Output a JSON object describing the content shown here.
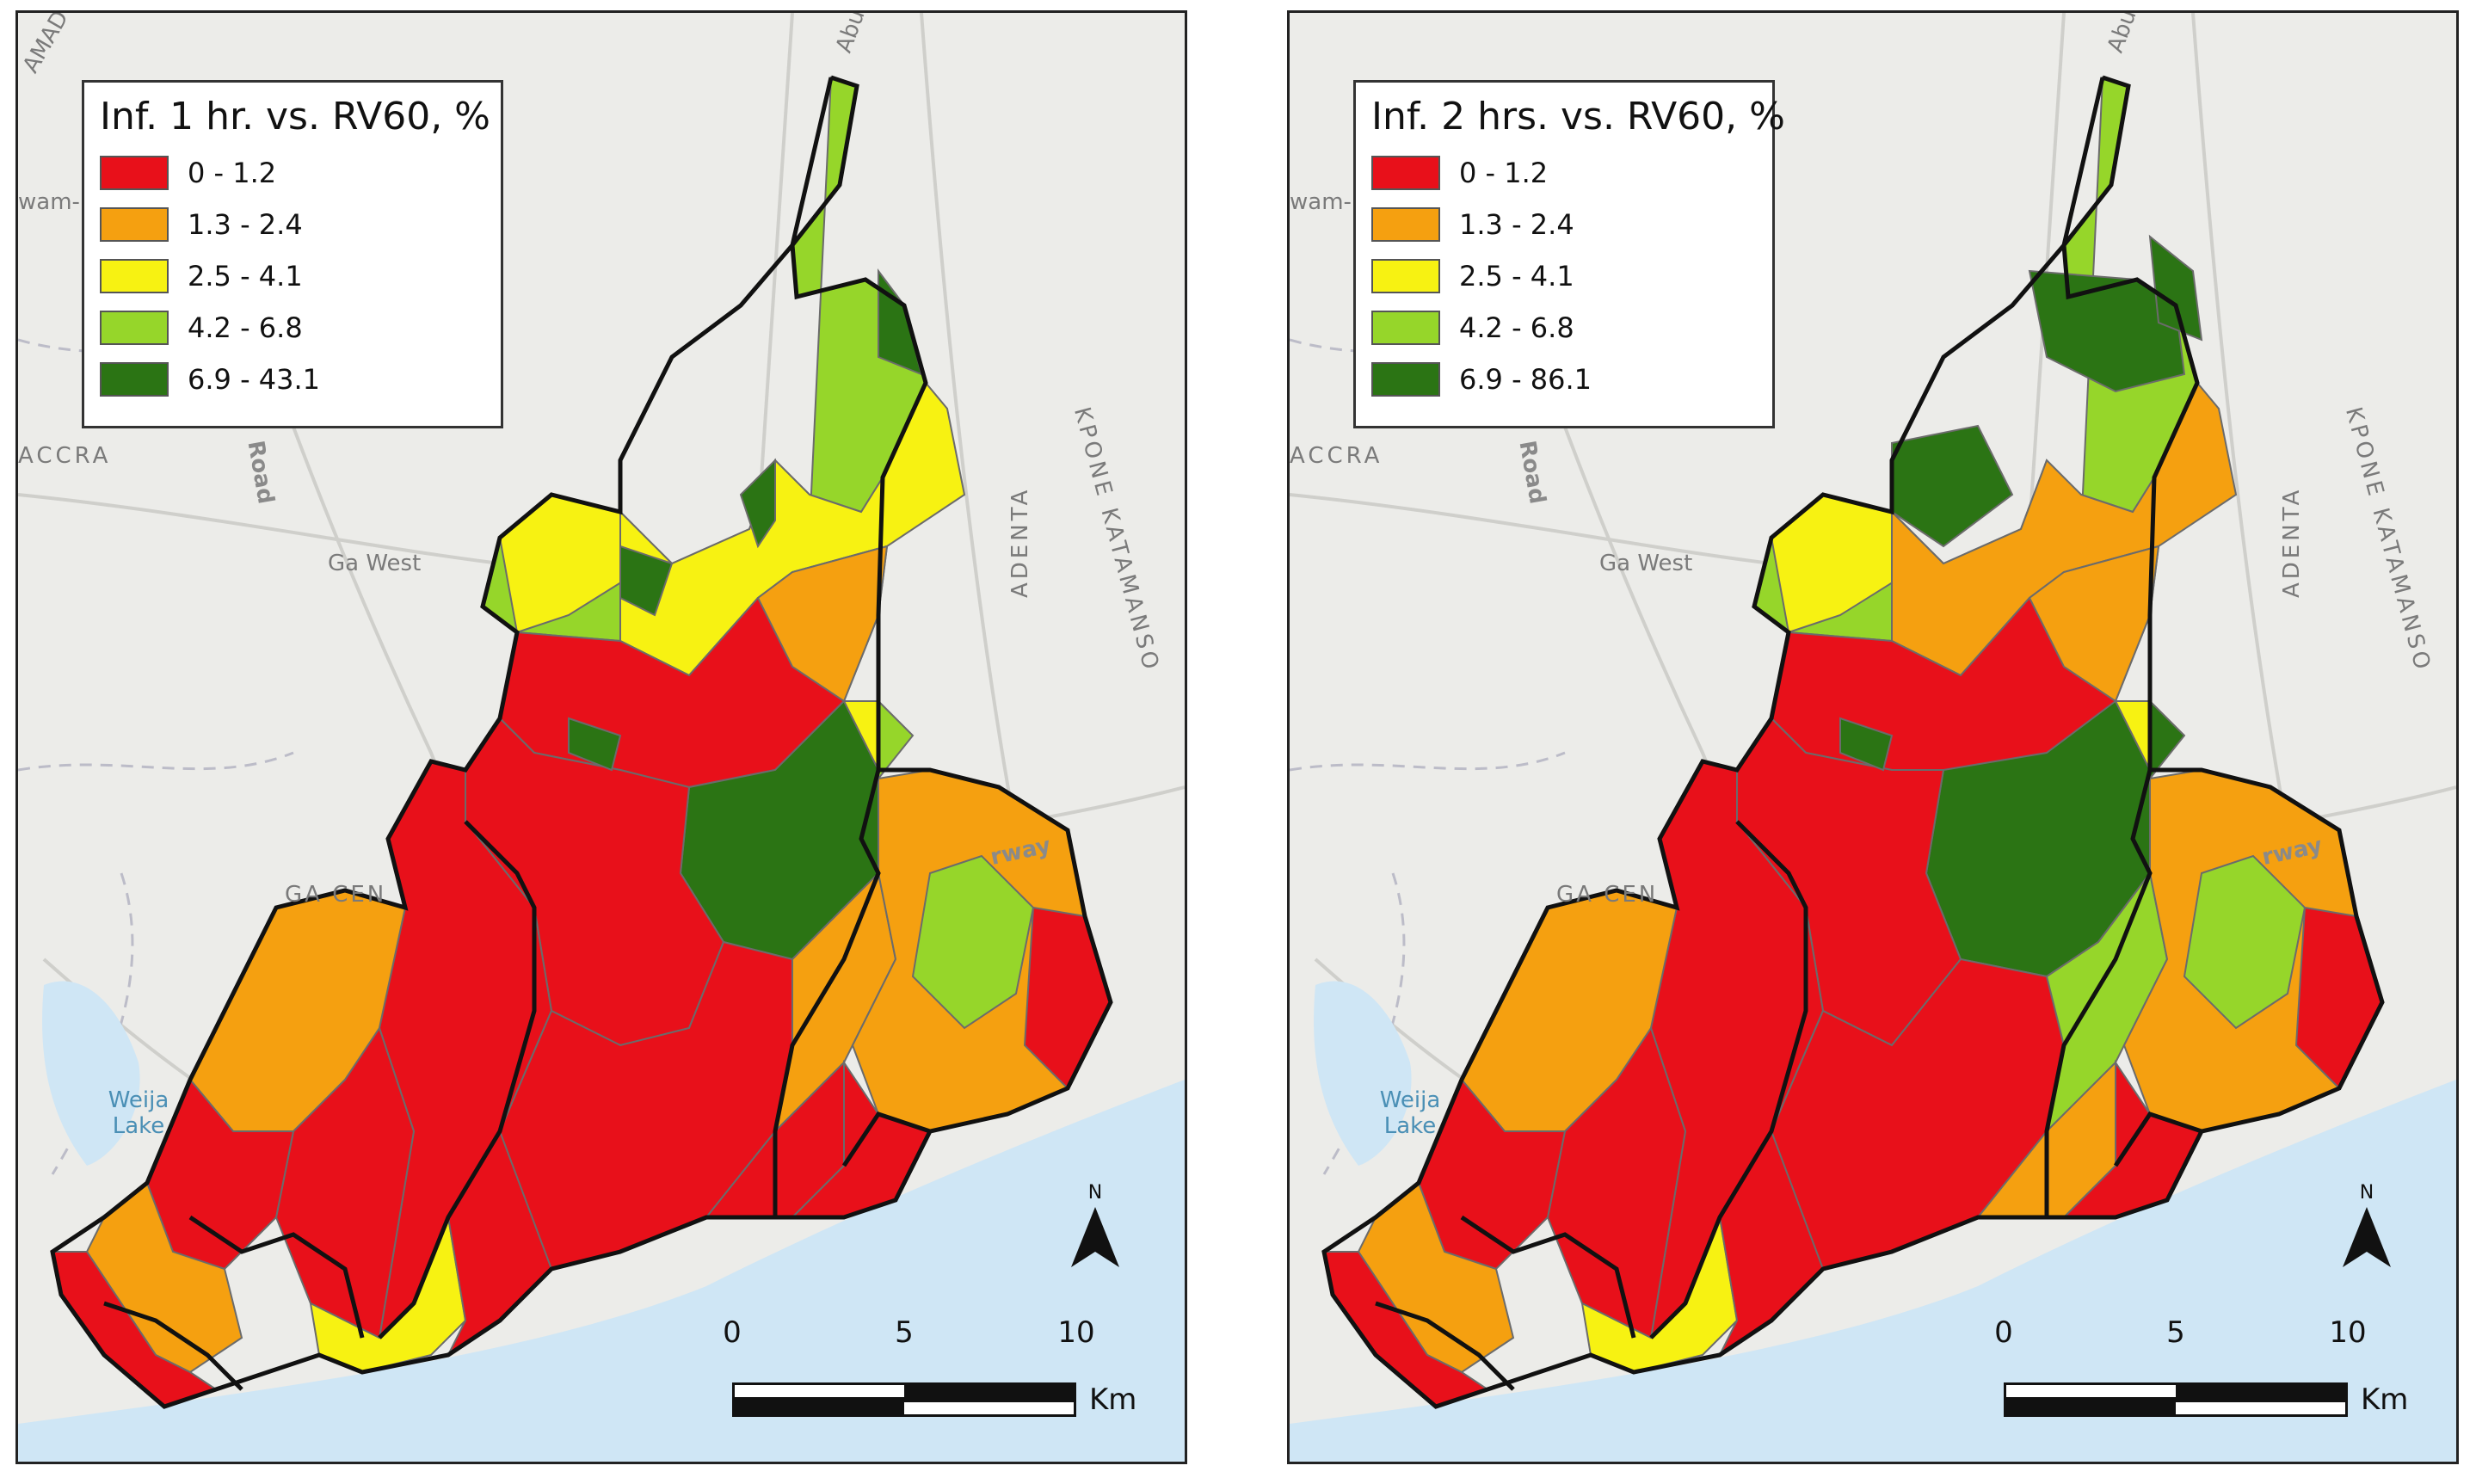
{
  "panels": [
    {
      "legend": {
        "title": "Inf. 1 hr. vs. RV60, %",
        "classes": [
          {
            "label": "0 - 1.2",
            "color": "#e8101a"
          },
          {
            "label": "1.3 - 2.4",
            "color": "#f5a010"
          },
          {
            "label": "2.5 - 4.1",
            "color": "#f7f212"
          },
          {
            "label": "4.2 - 6.8",
            "color": "#96d62a"
          },
          {
            "label": "6.9 - 43.1",
            "color": "#2b7414"
          }
        ]
      },
      "north_label": "N",
      "scale": {
        "ticks": [
          "0",
          "5",
          "10"
        ],
        "unit": "Km"
      },
      "places": {
        "ga_west": "Ga West",
        "accra": "ACCRA",
        "road": "Road",
        "adenta": "ADENTA",
        "kpone": "KPONE KATAMANSO",
        "ga_central": "GA CEN",
        "motorway": "rway",
        "weija": "Weija Lake",
        "abur": "Abur",
        "amadom": "AMADOM",
        "wam": "wam-"
      }
    },
    {
      "legend": {
        "title": "Inf. 2 hrs. vs. RV60, %",
        "classes": [
          {
            "label": "0 - 1.2",
            "color": "#e8101a"
          },
          {
            "label": "1.3 - 2.4",
            "color": "#f5a010"
          },
          {
            "label": "2.5 - 4.1",
            "color": "#f7f212"
          },
          {
            "label": "4.2 - 6.8",
            "color": "#96d62a"
          },
          {
            "label": "6.9 - 86.1",
            "color": "#2b7414"
          }
        ]
      },
      "north_label": "N",
      "scale": {
        "ticks": [
          "0",
          "5",
          "10"
        ],
        "unit": "Km"
      },
      "places": {
        "ga_west": "Ga West",
        "accra": "ACCRA",
        "road": "Road",
        "adenta": "ADENTA",
        "kpone": "KPONE KATAMANSO",
        "ga_central": "GA CEN",
        "motorway": "rway",
        "weija": "Weija Lake",
        "abur": "Abur",
        "amadom": "",
        "wam": "wam-"
      }
    }
  ],
  "colors": {
    "basemap": "#ecece9",
    "water": "#cfe6f5",
    "boundary": "#111111",
    "polygon_edge": "#6b6b6b"
  }
}
